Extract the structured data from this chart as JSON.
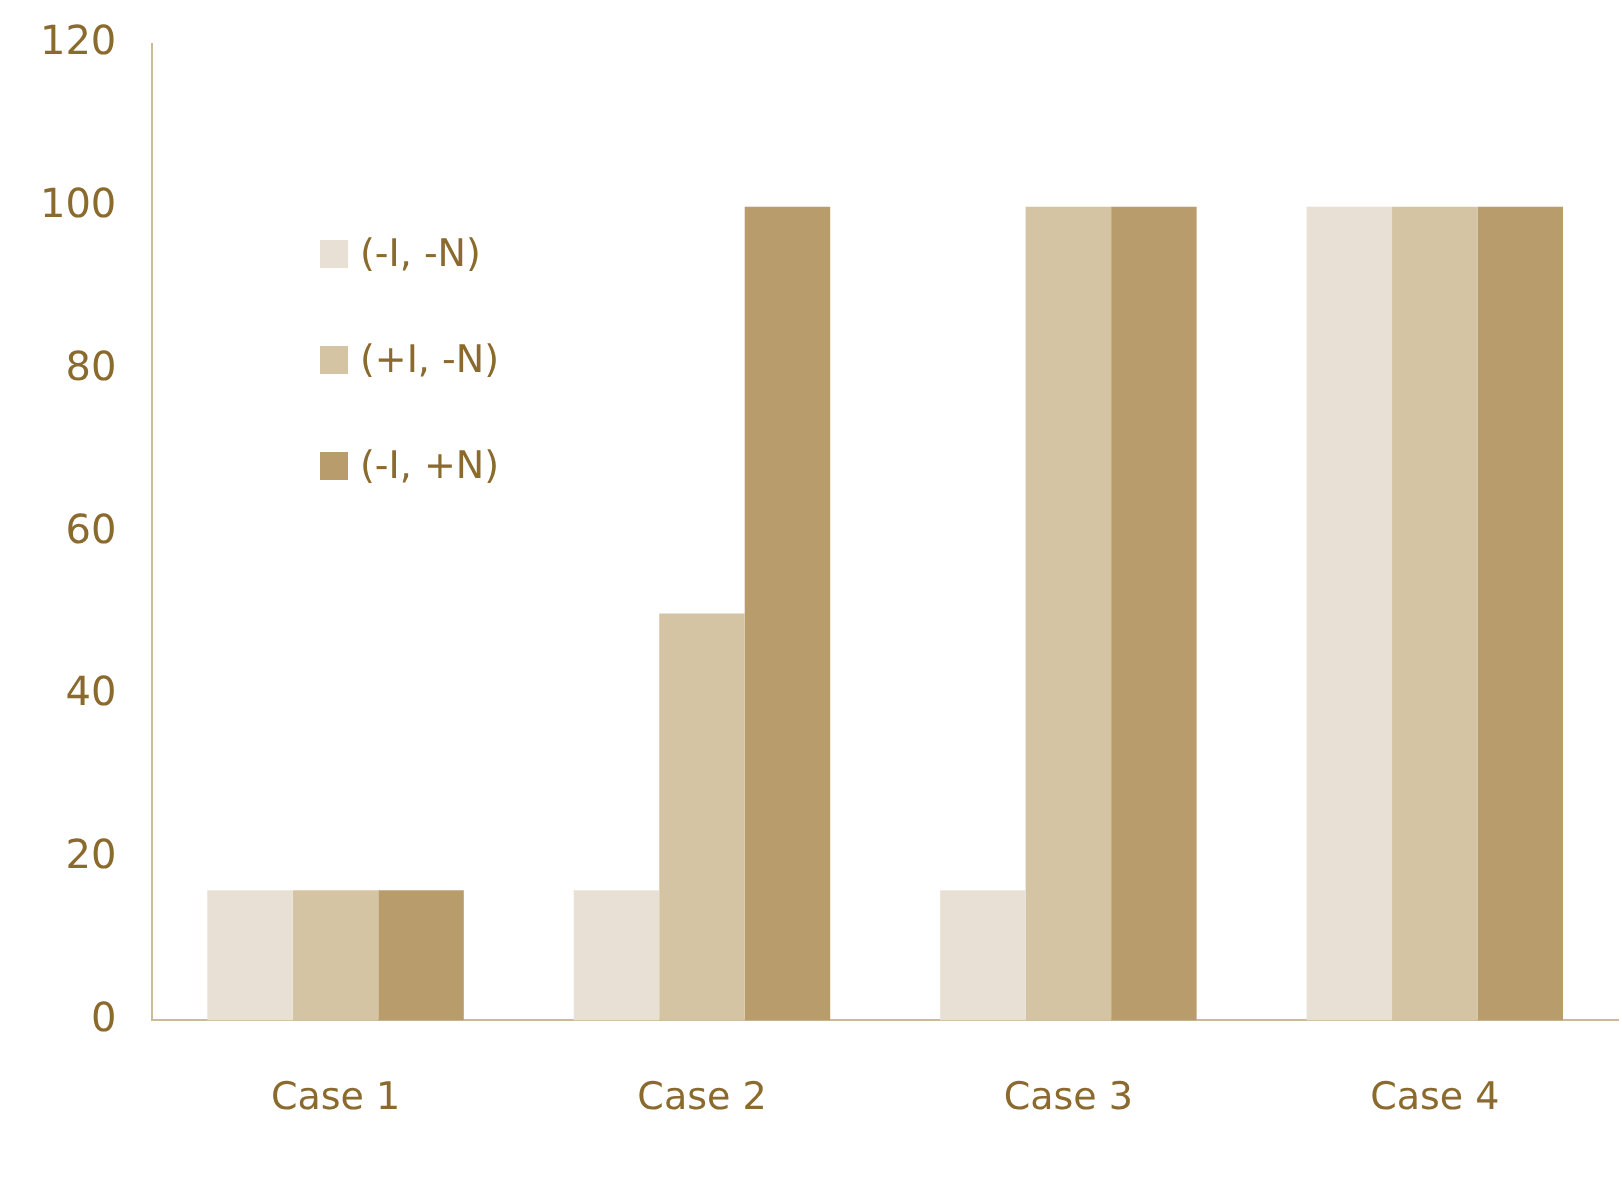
{
  "chart_data": {
    "type": "bar",
    "categories": [
      "Case 1",
      "Case 2",
      "Case 3",
      "Case 4"
    ],
    "series": [
      {
        "name": "(-I, -N)",
        "color": "#e8e0d4",
        "values": [
          16,
          16,
          16,
          100
        ]
      },
      {
        "name": "(+I, -N)",
        "color": "#d4c4a4",
        "values": [
          16,
          50,
          100,
          100
        ]
      },
      {
        "name": "(-I, +N)",
        "color": "#b89c6c",
        "values": [
          16,
          100,
          100,
          100
        ]
      }
    ],
    "ylim": [
      0,
      120
    ],
    "yticks": [
      0,
      20,
      40,
      60,
      80,
      100,
      120
    ],
    "grid": false,
    "legend": "top left"
  }
}
